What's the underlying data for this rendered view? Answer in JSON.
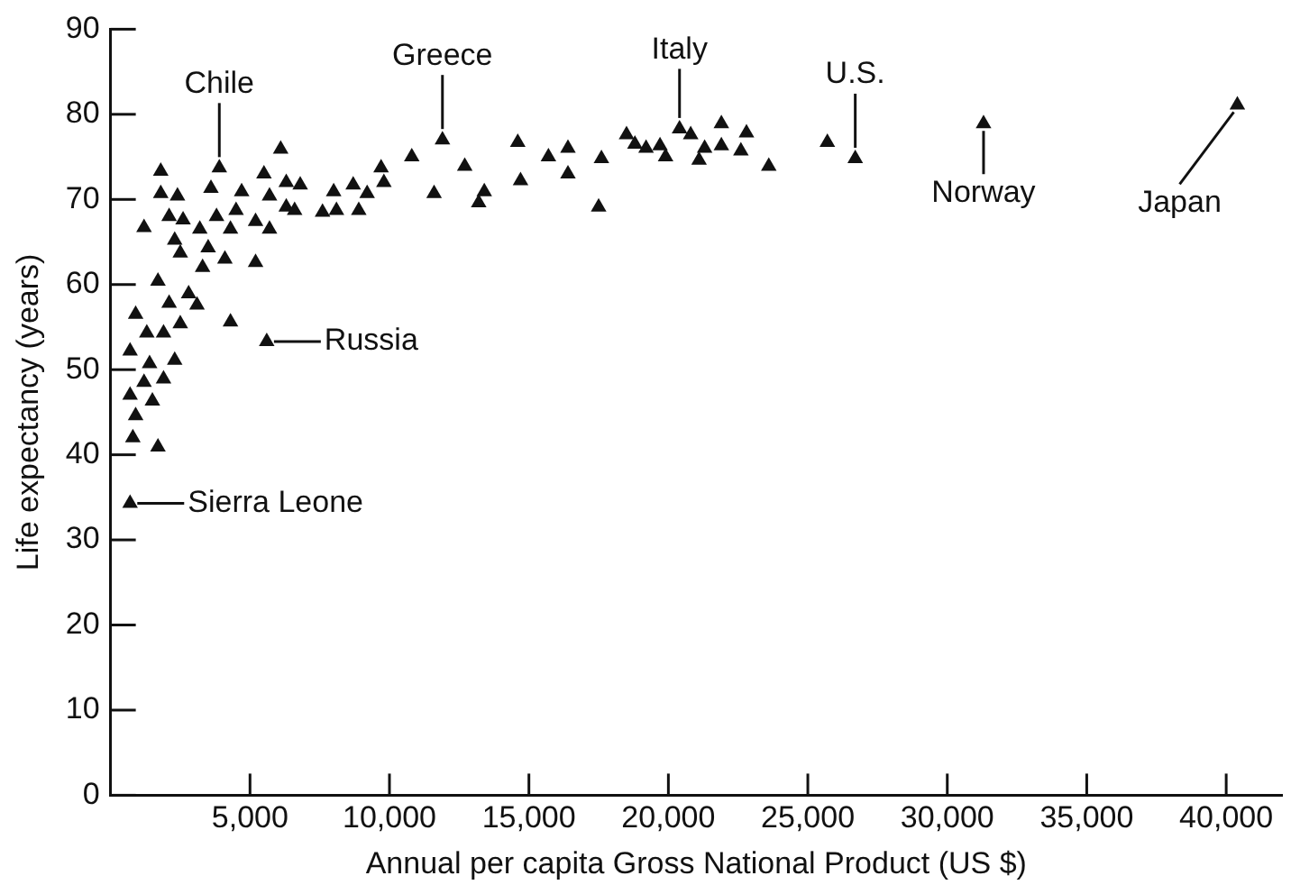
{
  "chart_data": {
    "type": "scatter",
    "xlabel": "Annual per capita Gross National Product (US $)",
    "ylabel": "Life expectancy (years)",
    "xlim": [
      0,
      42000
    ],
    "xticks": [
      {
        "value": 5000,
        "label": "5,000"
      },
      {
        "value": 10000,
        "label": "10,000"
      },
      {
        "value": 15000,
        "label": "15,000"
      },
      {
        "value": 20000,
        "label": "20,000"
      },
      {
        "value": 25000,
        "label": "25,000"
      },
      {
        "value": 30000,
        "label": "30,000"
      },
      {
        "value": 35000,
        "label": "35,000"
      },
      {
        "value": 40000,
        "label": "40,000"
      }
    ],
    "ylim": [
      0,
      90
    ],
    "yticks": [
      0,
      10,
      20,
      30,
      40,
      50,
      60,
      70,
      80,
      90
    ],
    "grid": false,
    "legend": false,
    "marker": "triangle",
    "series": [
      {
        "color": "#111111",
        "x": [
          1800,
          3900,
          6100,
          5500,
          1800,
          2400,
          1200,
          3600,
          4700,
          5700,
          6300,
          6800,
          2100,
          2600,
          3200,
          3800,
          4500,
          4300,
          5200,
          5700,
          6300,
          6600,
          2300,
          2500,
          3500,
          4100,
          3300,
          5200,
          1700,
          2800,
          3100,
          2100,
          900,
          1300,
          1900,
          2500,
          4300,
          5600,
          700,
          1400,
          2300,
          1900,
          700,
          1200,
          1500,
          900,
          800,
          1700,
          700,
          7600,
          8100,
          8900,
          8000,
          8700,
          9200,
          9700,
          9800,
          10800,
          11900,
          11600,
          12700,
          13400,
          13200,
          14600,
          14700,
          15700,
          16400,
          16400,
          17600,
          17500,
          18500,
          18800,
          19200,
          19700,
          19900,
          20400,
          20800,
          21100,
          21300,
          21900,
          21900,
          22600,
          22800,
          23600,
          25700,
          26700,
          31300,
          40400
        ],
        "values": [
          73.3,
          73.7,
          75.9,
          73,
          70.7,
          70.4,
          66.7,
          71.3,
          70.9,
          70.4,
          72,
          71.7,
          68,
          67.6,
          66.5,
          68,
          68.7,
          66.5,
          67.4,
          66.5,
          69.1,
          68.7,
          65.2,
          63.7,
          64.3,
          63,
          62,
          62.6,
          60.4,
          58.9,
          57.6,
          57.8,
          56.5,
          54.3,
          54.3,
          55.4,
          55.6,
          53.3,
          52.2,
          50.7,
          51.1,
          48.9,
          47,
          48.5,
          46.3,
          44.6,
          42,
          40.9,
          34.3,
          68.5,
          68.7,
          68.7,
          70.9,
          71.7,
          70.7,
          73.7,
          72,
          75,
          77,
          70.7,
          73.9,
          70.9,
          69.6,
          76.7,
          72.2,
          75,
          76,
          73,
          74.8,
          69.1,
          77.6,
          76.5,
          76,
          76.3,
          75,
          78.3,
          77.6,
          74.6,
          76,
          76.3,
          78.9,
          75.7,
          77.8,
          73.9,
          76.7,
          74.8,
          78.9,
          81.1
        ]
      }
    ],
    "annotations": [
      {
        "text": "Chile",
        "x": 3900,
        "y": 73.7
      },
      {
        "text": "Greece",
        "x": 11900,
        "y": 77
      },
      {
        "text": "Italy",
        "x": 20400,
        "y": 78.3
      },
      {
        "text": "U.S.",
        "x": 26700,
        "y": 74.8
      },
      {
        "text": "Norway",
        "x": 31300,
        "y": 78.9
      },
      {
        "text": "Japan",
        "x": 40400,
        "y": 81.1
      },
      {
        "text": "Russia",
        "x": 5600,
        "y": 53.3
      },
      {
        "text": "Sierra Leone",
        "x": 700,
        "y": 34.3
      }
    ]
  }
}
